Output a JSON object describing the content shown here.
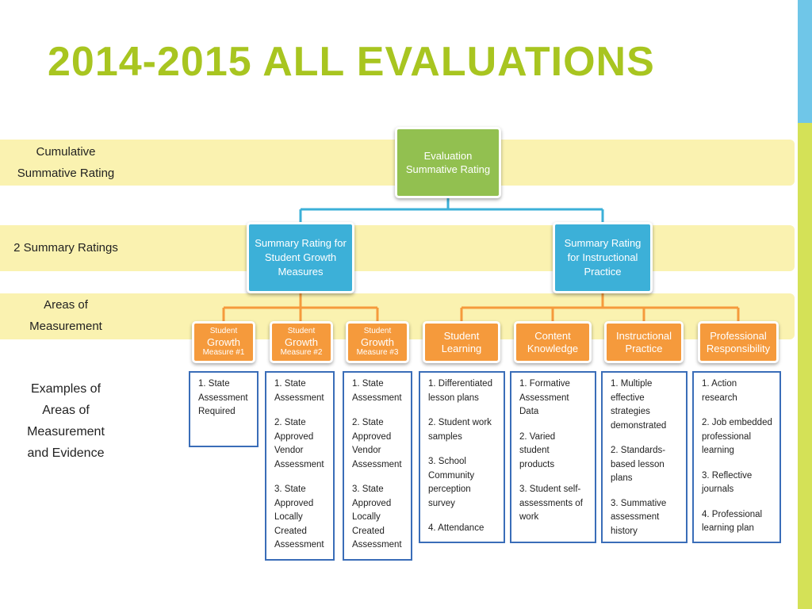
{
  "title": "2014-2015 ALL EVALUATIONS",
  "colors": {
    "title": "#a8c520",
    "band": "#faf2b0",
    "root": "#92c050",
    "summary": "#3cb0d8",
    "measure": "#f59a3c",
    "connector_blue": "#3cb0d8",
    "connector_orange": "#f59a3c",
    "example_border": "#3a6db8"
  },
  "row_labels": {
    "cumulative": [
      "Cumulative",
      "Summative Rating"
    ],
    "summary": "2 Summary Ratings",
    "areas": [
      "Areas of",
      "Measurement"
    ],
    "examples": [
      "Examples of",
      "Areas of",
      "Measurement",
      "and Evidence"
    ]
  },
  "root": [
    "Evaluation",
    "Summative Rating"
  ],
  "summary_ratings": [
    [
      "Summary Rating for",
      "Student Growth",
      "Measures"
    ],
    [
      "Summary Rating",
      "for Instructional",
      "Practice"
    ]
  ],
  "measures": [
    {
      "small_top": "Student",
      "main": "Growth",
      "small_bottom": "Measure #1"
    },
    {
      "small_top": "Student",
      "main": "Growth",
      "small_bottom": "Measure #2"
    },
    {
      "small_top": "Student",
      "main": "Growth",
      "small_bottom": "Measure #3"
    },
    {
      "lines": [
        "Student",
        "Learning"
      ]
    },
    {
      "lines": [
        "Content",
        "Knowledge"
      ]
    },
    {
      "lines": [
        "Instructional",
        "Practice"
      ]
    },
    {
      "lines": [
        "Professional",
        "Responsibility"
      ]
    }
  ],
  "examples": [
    [
      [
        "1. State",
        "Assessment",
        "Required"
      ]
    ],
    [
      [
        "1. State",
        "Assessment"
      ],
      [
        "2. State",
        "Approved",
        "Vendor",
        "Assessment"
      ],
      [
        "3. State",
        "Approved",
        "Locally",
        "Created",
        "Assessment"
      ]
    ],
    [
      [
        "1. State",
        "Assessment"
      ],
      [
        "2. State",
        "Approved",
        "Vendor",
        "Assessment"
      ],
      [
        "3. State",
        "Approved",
        "Locally",
        "Created",
        "Assessment"
      ]
    ],
    [
      [
        "1. Differentiated",
        "lesson plans"
      ],
      [
        "2. Student work",
        "samples"
      ],
      [
        "3. School",
        "Community",
        "perception",
        "survey"
      ],
      [
        "4. Attendance"
      ]
    ],
    [
      [
        "1. Formative",
        "Assessment",
        "Data"
      ],
      [
        "2. Varied",
        "student",
        "products"
      ],
      [
        "3. Student self-",
        "assessments of",
        "work"
      ]
    ],
    [
      [
        "1. Multiple",
        "effective",
        "strategies",
        "demonstrated"
      ],
      [
        "2. Standards-",
        "based lesson",
        "plans"
      ],
      [
        "3. Summative",
        "assessment",
        "history"
      ]
    ],
    [
      [
        "1. Action",
        "research"
      ],
      [
        "2. Job embedded",
        "professional",
        "learning"
      ],
      [
        "3. Reflective",
        "journals"
      ],
      [
        "4. Professional",
        "learning plan"
      ]
    ]
  ]
}
